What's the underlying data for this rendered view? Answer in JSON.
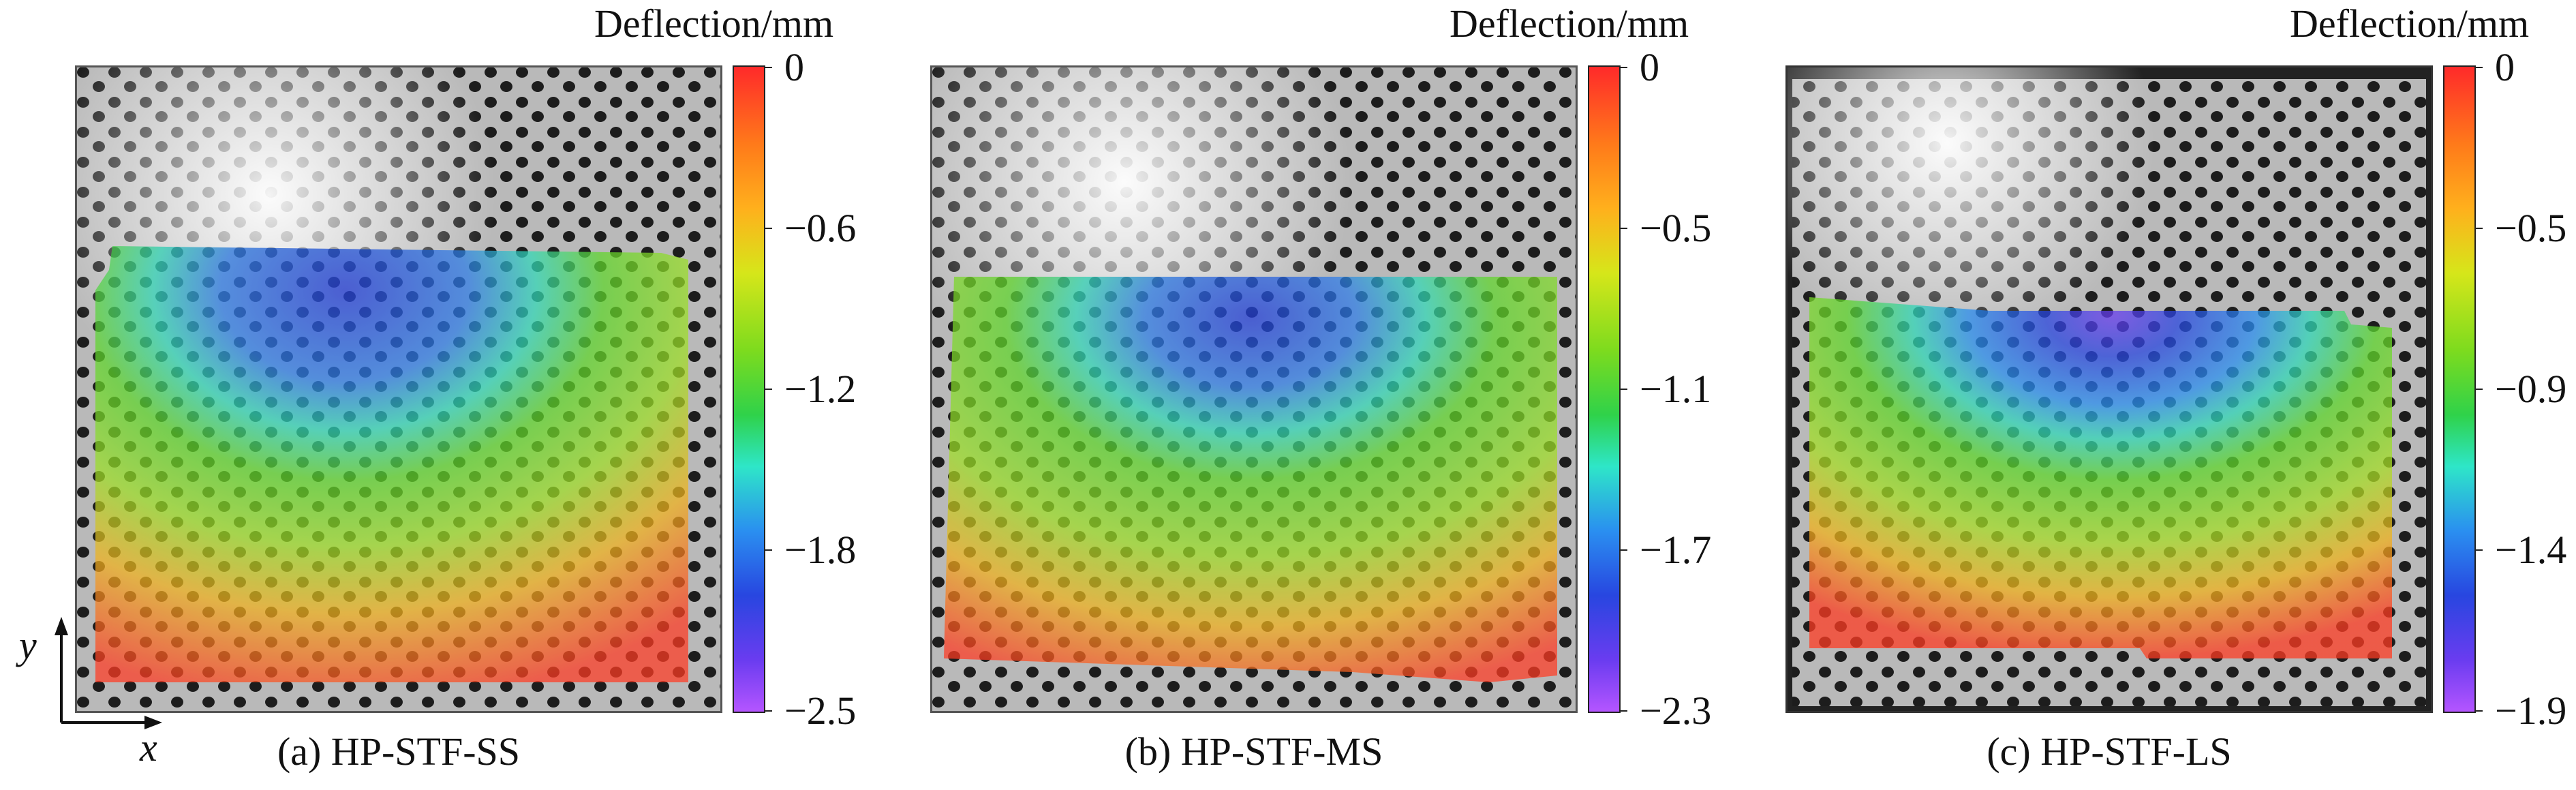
{
  "panels": [
    {
      "caption": "(a) HP-STF-SS",
      "colorbar_title": "Deflection/mm",
      "colorbar_ticks": [
        "0",
        "−0.6",
        "−1.2",
        "−1.8",
        "−2.5"
      ]
    },
    {
      "caption": "(b) HP-STF-MS",
      "colorbar_title": "Deflection/mm",
      "colorbar_ticks": [
        "0",
        "−0.5",
        "−1.1",
        "−1.7",
        "−2.3"
      ]
    },
    {
      "caption": "(c) HP-STF-LS",
      "colorbar_title": "Deflection/mm",
      "colorbar_ticks": [
        "0",
        "−0.5",
        "−0.9",
        "−1.4",
        "−1.9"
      ]
    }
  ],
  "axes": {
    "x_label": "x",
    "y_label": "y"
  }
}
